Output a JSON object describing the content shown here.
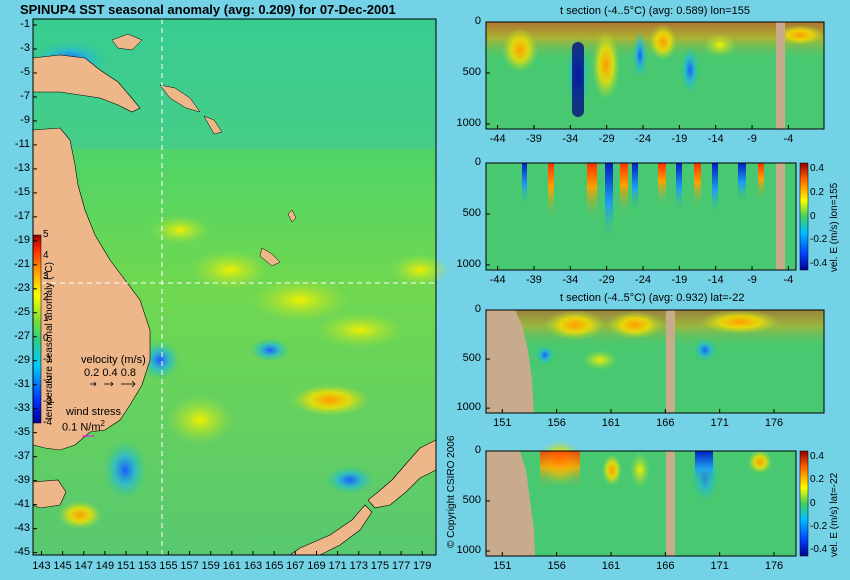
{
  "figure_title": "SPINUP4 SST seasonal anomaly (avg: 0.209) for 07-Dec-2001",
  "copyright": "© Copyright CSIRO 2006",
  "colors": {
    "background": "#74d2e6",
    "land": "#eeb78a",
    "section_land": "#c8aa8c"
  },
  "map": {
    "y_ticks": [
      "-1",
      "-3",
      "-5",
      "-7",
      "-9",
      "-11",
      "-13",
      "-15",
      "-17",
      "-19",
      "-21",
      "-23",
      "-25",
      "-27",
      "-29",
      "-31",
      "-33",
      "-35",
      "-37",
      "-39",
      "-41",
      "-43",
      "-45"
    ],
    "x_ticks": [
      "143",
      "145",
      "147",
      "149",
      "151",
      "153",
      "155",
      "157",
      "159",
      "161",
      "163",
      "165",
      "167",
      "169",
      "171",
      "173",
      "175",
      "177",
      "179"
    ],
    "colorbar_ticks": [
      "5",
      "4",
      "3",
      "2",
      "1",
      "0",
      "-1",
      "-2",
      "-3",
      "-4"
    ],
    "colorbar_label": "temperature seasonal anomaly (°C)",
    "velocity_label": "velocity (m/s)",
    "velocity_scale": "0.2 0.4 0.8",
    "wind_label": "wind stress",
    "wind_scale": "0.1 N/m",
    "wind_scale_sup": "2"
  },
  "panels": [
    {
      "title": "t section (-4..5°C) (avg: 0.589) lon=155",
      "x_ticks": [
        "-44",
        "-39",
        "-34",
        "-29",
        "-24",
        "-19",
        "-14",
        "-9",
        "-4"
      ],
      "y_ticks": [
        "0",
        "500",
        "1000"
      ]
    },
    {
      "title": "",
      "x_ticks": [
        "-44",
        "-39",
        "-34",
        "-29",
        "-24",
        "-19",
        "-14",
        "-9",
        "-4"
      ],
      "y_ticks": [
        "0",
        "500",
        "1000"
      ],
      "colorbar_ticks": [
        "0.4",
        "0.2",
        "0",
        "-0.2",
        "-0.4"
      ],
      "side_label": "vel. E (m/s) lon=155"
    },
    {
      "title": "t section (-4..5°C) (avg: 0.932) lat=-22",
      "x_ticks": [
        "151",
        "156",
        "161",
        "166",
        "171",
        "176"
      ],
      "y_ticks": [
        "0",
        "500",
        "1000"
      ]
    },
    {
      "title": "",
      "x_ticks": [
        "151",
        "156",
        "161",
        "166",
        "171",
        "176"
      ],
      "y_ticks": [
        "0",
        "500",
        "1000"
      ],
      "colorbar_ticks": [
        "0.4",
        "0.2",
        "0",
        "-0.2",
        "-0.4"
      ],
      "side_label": "vel. E (m/s) lat=-22"
    }
  ],
  "chart_data": [
    {
      "type": "heatmap",
      "title": "SPINUP4 SST seasonal anomaly (avg: 0.209) for 07-Dec-2001",
      "x": [
        143,
        145,
        147,
        149,
        151,
        153,
        155,
        157,
        159,
        161,
        163,
        165,
        167,
        169,
        171,
        173,
        175,
        177,
        179
      ],
      "y": [
        -1,
        -3,
        -5,
        -7,
        -9,
        -11,
        -13,
        -15,
        -17,
        -19,
        -21,
        -23,
        -25,
        -27,
        -29,
        -31,
        -33,
        -35,
        -37,
        -39,
        -41,
        -43,
        -45
      ],
      "color_range": [
        -4,
        5
      ],
      "colorbar_label": "temperature seasonal anomaly (°C)"
    },
    {
      "type": "heatmap",
      "title": "t section (-4..5°C) (avg: 0.589) lon=155",
      "x": [
        -44,
        -39,
        -34,
        -29,
        -24,
        -19,
        -14,
        -9,
        -4
      ],
      "y": [
        0,
        500,
        1000
      ],
      "color_range": [
        -4,
        5
      ]
    },
    {
      "type": "heatmap",
      "title": "",
      "x": [
        -44,
        -39,
        -34,
        -29,
        -24,
        -19,
        -14,
        -9,
        -4
      ],
      "y": [
        0,
        500,
        1000
      ],
      "color_range": [
        -0.4,
        0.4
      ],
      "colorbar_label": "vel. E (m/s) lon=155"
    },
    {
      "type": "heatmap",
      "title": "t section (-4..5°C) (avg: 0.932) lat=-22",
      "x": [
        151,
        156,
        161,
        166,
        171,
        176
      ],
      "y": [
        0,
        500,
        1000
      ],
      "color_range": [
        -4,
        5
      ]
    },
    {
      "type": "heatmap",
      "title": "",
      "x": [
        151,
        156,
        161,
        166,
        171,
        176
      ],
      "y": [
        0,
        500,
        1000
      ],
      "color_range": [
        -0.4,
        0.4
      ],
      "colorbar_label": "vel. E (m/s) lat=-22"
    }
  ]
}
